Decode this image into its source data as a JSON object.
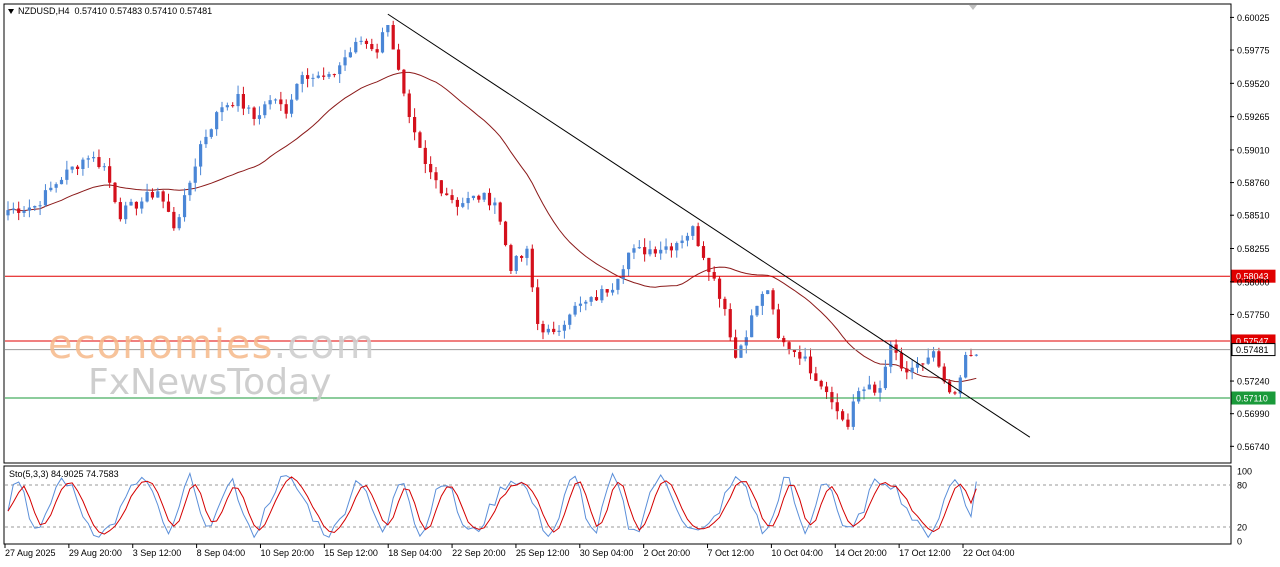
{
  "header": {
    "symbol": "NZDUSD,H4",
    "ohlc": "0.57410 0.57483 0.57410 0.57481"
  },
  "watermark": {
    "part1": "economies",
    "part2": ".com",
    "line2": "FxNewsToday"
  },
  "colors": {
    "bull": "#4a86d6",
    "bear": "#d4101c",
    "ma": "#8b1a1a",
    "resistance": "#e00000",
    "support": "#1a9a3a",
    "current": "#9a9a9a",
    "stoch_main": "#5b8fd9",
    "stoch_signal": "#d40000"
  },
  "chart_data": [
    {
      "type": "candlestick",
      "title": "NZDUSD,H4",
      "ylim": [
        0.5662,
        0.6012
      ],
      "y_ticks": [
        "0.60025",
        "0.59775",
        "0.59520",
        "0.59265",
        "0.59010",
        "0.58760",
        "0.58510",
        "0.58255",
        "0.58000",
        "0.57750",
        "0.57240",
        "0.56990",
        "0.56740"
      ],
      "x_ticks": [
        "27 Aug 2025",
        "29 Aug 20:00",
        "3 Sep 12:00",
        "8 Sep 04:00",
        "10 Sep 20:00",
        "15 Sep 12:00",
        "18 Sep 04:00",
        "22 Sep 20:00",
        "25 Sep 12:00",
        "30 Sep 04:00",
        "2 Oct 20:00",
        "7 Oct 12:00",
        "10 Oct 04:00",
        "14 Oct 20:00",
        "17 Oct 12:00",
        "22 Oct 04:00"
      ],
      "bars_total": 175,
      "price_path": [
        [
          0,
          0.5855
        ],
        [
          5,
          0.5858
        ],
        [
          10,
          0.588
        ],
        [
          15,
          0.5897
        ],
        [
          18,
          0.5888
        ],
        [
          21,
          0.5852
        ],
        [
          25,
          0.5862
        ],
        [
          28,
          0.587
        ],
        [
          31,
          0.5843
        ],
        [
          33,
          0.5862
        ],
        [
          36,
          0.5905
        ],
        [
          40,
          0.5935
        ],
        [
          43,
          0.594
        ],
        [
          46,
          0.5925
        ],
        [
          49,
          0.594
        ],
        [
          52,
          0.5932
        ],
        [
          55,
          0.5962
        ],
        [
          57,
          0.5957
        ],
        [
          60,
          0.5955
        ],
        [
          63,
          0.5972
        ],
        [
          66,
          0.5985
        ],
        [
          69,
          0.5978
        ],
        [
          71,
          0.6
        ],
        [
          73,
          0.596
        ],
        [
          75,
          0.5922
        ],
        [
          78,
          0.5888
        ],
        [
          81,
          0.5872
        ],
        [
          84,
          0.586
        ],
        [
          88,
          0.5865
        ],
        [
          91,
          0.5862
        ],
        [
          94,
          0.5812
        ],
        [
          97,
          0.5822
        ],
        [
          99,
          0.5768
        ],
        [
          102,
          0.5758
        ],
        [
          105,
          0.5778
        ],
        [
          109,
          0.5785
        ],
        [
          113,
          0.5798
        ],
        [
          116,
          0.5822
        ],
        [
          120,
          0.5825
        ],
        [
          124,
          0.5828
        ],
        [
          128,
          0.584
        ],
        [
          131,
          0.5812
        ],
        [
          134,
          0.578
        ],
        [
          136,
          0.5742
        ],
        [
          140,
          0.5782
        ],
        [
          142,
          0.5795
        ],
        [
          144,
          0.5755
        ],
        [
          148,
          0.5745
        ],
        [
          151,
          0.5728
        ],
        [
          154,
          0.5712
        ],
        [
          155,
          0.57
        ],
        [
          157,
          0.569
        ],
        [
          158,
          0.5708
        ],
        [
          161,
          0.5722
        ],
        [
          163,
          0.5715
        ],
        [
          165,
          0.5752
        ],
        [
          167,
          0.5732
        ],
        [
          169,
          0.573
        ],
        [
          171,
          0.5738
        ],
        [
          172,
          0.5742
        ],
        [
          173,
          0.5745
        ],
        [
          175,
          0.572
        ],
        [
          177,
          0.571
        ],
        [
          179,
          0.5741
        ],
        [
          181,
          0.5748
        ]
      ],
      "levels": [
        {
          "price": 0.58043,
          "label": "0.58043",
          "style": "resistance"
        },
        {
          "price": 0.57547,
          "label": "0.57547",
          "style": "resistance"
        },
        {
          "price": 0.57481,
          "label": "0.57481",
          "style": "current"
        },
        {
          "price": 0.5711,
          "label": "0.57110",
          "style": "support"
        }
      ],
      "trendline": {
        "from": [
          71,
          0.6005
        ],
        "to": [
          191,
          0.5681
        ]
      },
      "moving_average": "MA"
    },
    {
      "type": "line",
      "title": "Sto(5,3,3) 84.9025 74.7583",
      "ylim": [
        0,
        100
      ],
      "y_ticks": [
        "100",
        "80",
        "20",
        "0"
      ],
      "levels": [
        80,
        20
      ],
      "series": [
        {
          "name": "Sto main",
          "value": 84.9025
        },
        {
          "name": "Sto signal",
          "value": 74.7583
        }
      ]
    }
  ]
}
